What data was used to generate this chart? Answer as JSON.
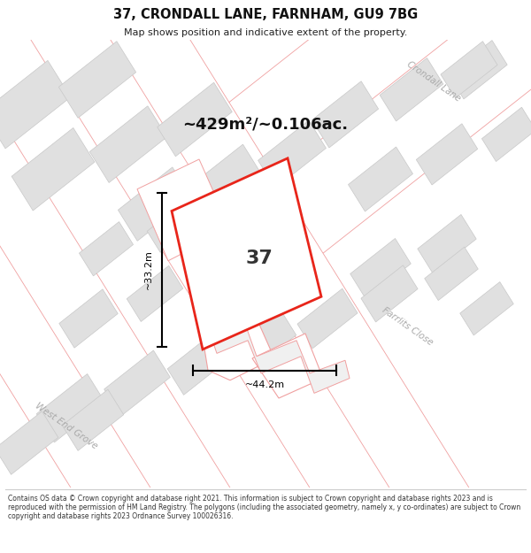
{
  "title": "37, CRONDALL LANE, FARNHAM, GU9 7BG",
  "subtitle": "Map shows position and indicative extent of the property.",
  "area_text": "~429m²/~0.106ac.",
  "label_37": "37",
  "dim_width": "~44.2m",
  "dim_height": "~33.2m",
  "footer": "Contains OS data © Crown copyright and database right 2021. This information is subject to Crown copyright and database rights 2023 and is reproduced with the permission of HM Land Registry. The polygons (including the associated geometry, namely x, y co-ordinates) are subject to Crown copyright and database rights 2023 Ordnance Survey 100026316.",
  "map_bg": "#ffffff",
  "footer_bg": "#ffffff",
  "title_bg": "#ffffff",
  "road_label_crondall": "Crondall Lane",
  "road_label_westend": "West End Grove",
  "road_label_farrlits": "Farrlits Close",
  "highlight_fill": "#ffffff",
  "highlight_stroke": "#e8251a",
  "parcel_stroke": "#f0a0a0",
  "building_fill": "#e0e0e0",
  "building_stroke": "#c8c8c8",
  "dim_color": "#000000",
  "label_color": "#444444",
  "road_label_color": "#aaaaaa"
}
